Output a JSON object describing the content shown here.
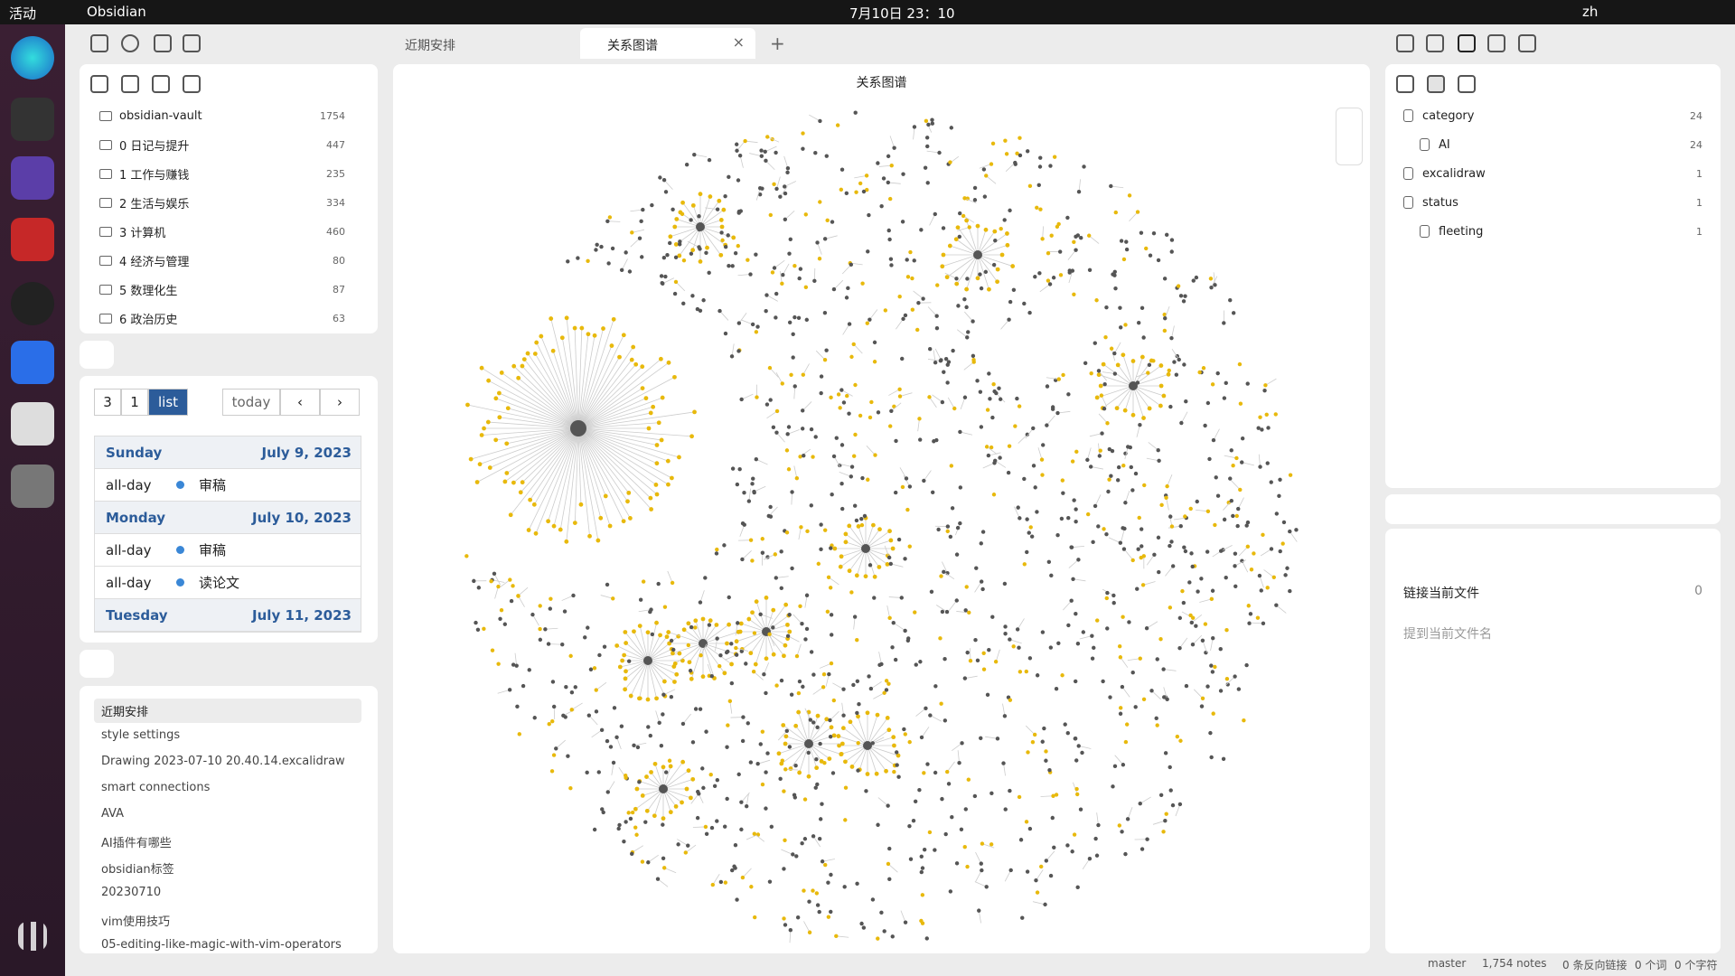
{
  "topbar": {
    "activities": "活动",
    "app": "Obsidian",
    "clock": "7月10日  23：10",
    "lang": "zh"
  },
  "tabs": [
    {
      "label": "近期安排"
    },
    {
      "label": "关系图谱"
    }
  ],
  "graph_title": "关系图谱",
  "file_tree": {
    "items": [
      {
        "name": "obsidian-vault",
        "count": 1754
      },
      {
        "name": "0 日记与提升",
        "count": 447
      },
      {
        "name": "1 工作与赚钱",
        "count": 235
      },
      {
        "name": "2 生活与娱乐",
        "count": 334
      },
      {
        "name": "3 计算机",
        "count": 460
      },
      {
        "name": "4 经济与管理",
        "count": 80
      },
      {
        "name": "5 数理化生",
        "count": 87
      },
      {
        "name": "6 政治历史",
        "count": 63
      }
    ]
  },
  "calendar": {
    "views": [
      "3",
      "1",
      "list"
    ],
    "today": "today",
    "days": [
      {
        "weekday": "Sunday",
        "date": "July 9, 2023",
        "events": [
          {
            "time": "all-day",
            "title": "审稿"
          }
        ]
      },
      {
        "weekday": "Monday",
        "date": "July 10, 2023",
        "events": [
          {
            "time": "all-day",
            "title": "审稿"
          },
          {
            "time": "all-day",
            "title": "读论文"
          }
        ]
      },
      {
        "weekday": "Tuesday",
        "date": "July 11, 2023",
        "events": []
      }
    ]
  },
  "recent": [
    "近期安排",
    "style settings",
    "Drawing 2023-07-10 20.40.14.excalidraw",
    "smart connections",
    "AVA",
    "AI插件有哪些",
    "obsidian标签",
    "20230710",
    "vim使用技巧",
    "05-editing-like-magic-with-vim-operators"
  ],
  "tags": [
    {
      "name": "category",
      "count": 24,
      "level": 0
    },
    {
      "name": "AI",
      "count": 24,
      "level": 1
    },
    {
      "name": "excalidraw",
      "count": 1,
      "level": 0
    },
    {
      "name": "status",
      "count": 1,
      "level": 0
    },
    {
      "name": "fleeting",
      "count": 1,
      "level": 1
    }
  ],
  "backlinks": {
    "linked": "链接当前文件",
    "linked_count": 0,
    "unlinked": "提到当前文件名"
  },
  "status": {
    "branch": "master",
    "notes": "1,754 notes",
    "backlinks": "0 条反向链接",
    "words": "0 个词",
    "chars": "0 个字符"
  }
}
